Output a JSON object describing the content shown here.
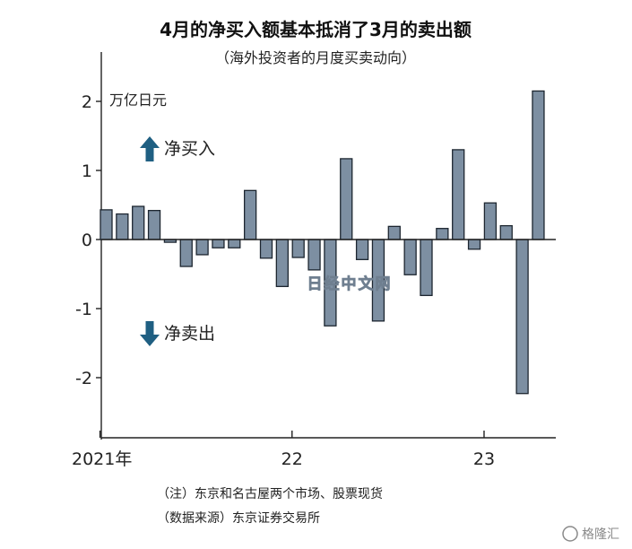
{
  "chart_data": {
    "type": "bar",
    "title": "4月的净买入额基本抵消了3月的卖出额",
    "subtitle": "（海外投资者的月度买卖动向）",
    "ylabel": "万亿日元",
    "ylim": [
      -2.8,
      2.8
    ],
    "yticks": [
      2,
      1,
      0,
      -1,
      -2
    ],
    "ytick_labels": [
      "2",
      "1",
      "0",
      "-1",
      "-2"
    ],
    "x_tick_labels": [
      {
        "label": "2021年",
        "index": 0
      },
      {
        "label": "22",
        "index": 12
      },
      {
        "label": "23",
        "index": 24
      }
    ],
    "values": [
      0.43,
      0.37,
      0.48,
      0.42,
      -0.04,
      -0.39,
      -0.22,
      -0.12,
      -0.12,
      0.71,
      -0.27,
      -0.68,
      -0.26,
      -0.44,
      -1.25,
      1.17,
      -0.29,
      -1.18,
      0.19,
      -0.51,
      -0.81,
      0.16,
      1.3,
      -0.14,
      0.53,
      0.2,
      -2.23,
      2.15
    ],
    "bar_color": "#7d8fa2",
    "bar_edge_color": "#1d2630",
    "grid": false,
    "annotations": {
      "buy_label": "净买入",
      "sell_label": "净卖出",
      "arrow_color": "#1f5f82"
    }
  },
  "notes": {
    "note": "（注）东京和名古屋两个市场、股票现货",
    "source": "（数据来源）东京证券交易所"
  },
  "watermark": {
    "center": "日经中文网",
    "corner": "格隆汇"
  }
}
